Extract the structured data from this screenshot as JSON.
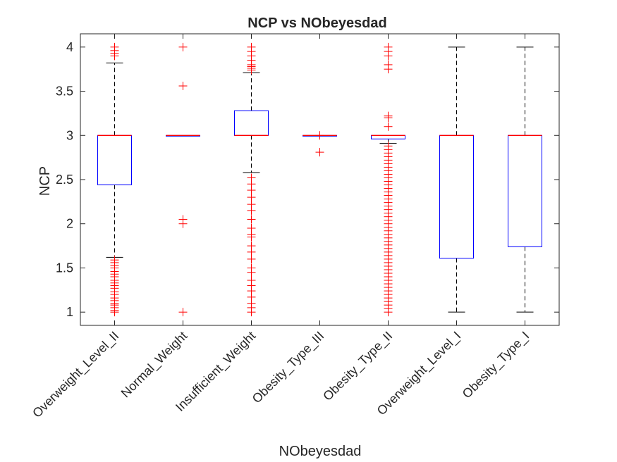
{
  "chart_data": {
    "type": "box",
    "title": "NCP vs NObeyesdad",
    "xlabel": "NObeyesdad",
    "ylabel": "NCP",
    "ylim": [
      0.85,
      4.15
    ],
    "yticks": [
      1,
      1.5,
      2,
      2.5,
      3,
      3.5,
      4
    ],
    "ytick_labels": [
      "1",
      "1.5",
      "2",
      "2.5",
      "3",
      "3.5",
      "4"
    ],
    "categories": [
      "Overweight_Level_II",
      "Normal_Weight",
      "Insufficient_Weight",
      "Obesity_Type_III",
      "Obesity_Type_II",
      "Overweight_Level_I",
      "Obesity_Type_I"
    ],
    "colors": {
      "box": "#0000ff",
      "median": "#ff0000",
      "outlier": "#ff0000",
      "whisker": "#000000",
      "axis": "#262626"
    },
    "boxes": [
      {
        "q1": 2.44,
        "median": 3.0,
        "q3": 3.0,
        "whisker_low": 1.62,
        "whisker_high": 3.82,
        "outliers": [
          1.0,
          1.02,
          1.05,
          1.08,
          1.1,
          1.13,
          1.16,
          1.2,
          1.23,
          1.27,
          1.3,
          1.33,
          1.36,
          1.4,
          1.43,
          1.46,
          1.5,
          1.53,
          1.56,
          1.59,
          3.9,
          3.93,
          3.96,
          4.0
        ]
      },
      {
        "q1": 3.0,
        "median": 3.0,
        "q3": 3.0,
        "whisker_low": 3.0,
        "whisker_high": 3.0,
        "outliers": [
          1.0,
          2.0,
          2.05,
          3.56,
          4.0
        ]
      },
      {
        "q1": 3.0,
        "median": 3.0,
        "q3": 3.28,
        "whisker_low": 2.58,
        "whisker_high": 3.71,
        "outliers": [
          1.0,
          1.05,
          1.1,
          1.17,
          1.24,
          1.3,
          1.36,
          1.45,
          1.5,
          1.6,
          1.68,
          1.75,
          1.85,
          1.88,
          1.95,
          2.05,
          2.15,
          2.22,
          2.3,
          2.38,
          2.45,
          2.52,
          3.74,
          3.76,
          3.78,
          3.8,
          3.85,
          3.9,
          3.95,
          4.0
        ]
      },
      {
        "q1": 3.0,
        "median": 3.0,
        "q3": 3.0,
        "whisker_low": 3.0,
        "whisker_high": 3.0,
        "outliers": [
          2.81,
          3.0
        ]
      },
      {
        "q1": 2.96,
        "median": 3.0,
        "q3": 3.0,
        "whisker_low": 2.91,
        "whisker_high": 3.0,
        "outliers": [
          1.0,
          1.04,
          1.08,
          1.12,
          1.16,
          1.2,
          1.24,
          1.28,
          1.32,
          1.36,
          1.4,
          1.44,
          1.48,
          1.52,
          1.56,
          1.6,
          1.64,
          1.68,
          1.72,
          1.76,
          1.8,
          1.84,
          1.88,
          1.92,
          1.96,
          2.0,
          2.04,
          2.08,
          2.12,
          2.16,
          2.2,
          2.24,
          2.28,
          2.32,
          2.36,
          2.4,
          2.44,
          2.48,
          2.52,
          2.56,
          2.6,
          2.64,
          2.68,
          2.72,
          2.76,
          2.8,
          2.84,
          2.88,
          3.1,
          3.2,
          3.22,
          3.75,
          3.8,
          3.9,
          3.95,
          4.0
        ]
      },
      {
        "q1": 1.61,
        "median": 3.0,
        "q3": 3.0,
        "whisker_low": 1.0,
        "whisker_high": 4.0,
        "outliers": []
      },
      {
        "q1": 1.74,
        "median": 3.0,
        "q3": 3.0,
        "whisker_low": 1.0,
        "whisker_high": 4.0,
        "outliers": []
      }
    ],
    "grid": false,
    "legend": "none"
  }
}
